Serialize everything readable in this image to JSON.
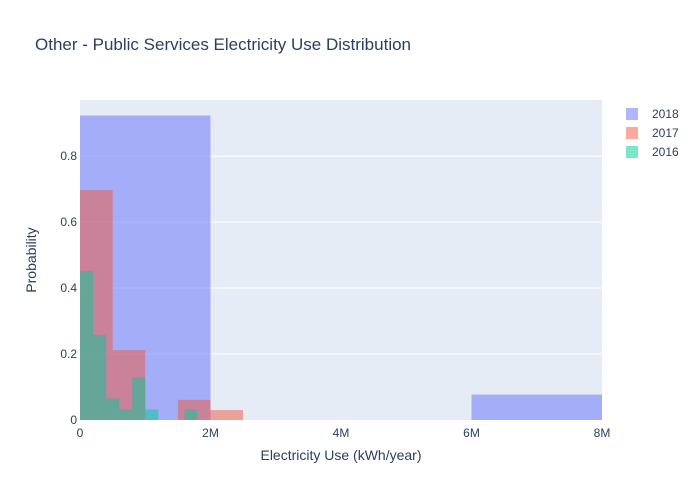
{
  "chart_data": {
    "type": "histogram",
    "title": "Other - Public Services Electricity Use Distribution",
    "xlabel": "Electricity Use (kWh/year)",
    "ylabel": "Probability",
    "xlim": [
      0,
      8000000
    ],
    "ylim": [
      0,
      0.97
    ],
    "x_ticks": [
      {
        "value": 0,
        "label": "0"
      },
      {
        "value": 2000000,
        "label": "2M"
      },
      {
        "value": 4000000,
        "label": "4M"
      },
      {
        "value": 6000000,
        "label": "6M"
      },
      {
        "value": 8000000,
        "label": "8M"
      }
    ],
    "y_ticks": [
      {
        "value": 0,
        "label": "0"
      },
      {
        "value": 0.2,
        "label": "0.2"
      },
      {
        "value": 0.4,
        "label": "0.4"
      },
      {
        "value": 0.6,
        "label": "0.6"
      },
      {
        "value": 0.8,
        "label": "0.8"
      }
    ],
    "grid": true,
    "legend_position": "top-right",
    "series": [
      {
        "name": "2018",
        "color": "#636efa",
        "bins": [
          {
            "x0": 0,
            "x1": 2000000,
            "y": 0.923
          },
          {
            "x0": 6000000,
            "x1": 8000000,
            "y": 0.077
          }
        ]
      },
      {
        "name": "2017",
        "color": "#ef553b",
        "bins": [
          {
            "x0": 0,
            "x1": 500000,
            "y": 0.697
          },
          {
            "x0": 500000,
            "x1": 1000000,
            "y": 0.212
          },
          {
            "x0": 1500000,
            "x1": 2000000,
            "y": 0.061
          },
          {
            "x0": 2000000,
            "x1": 2500000,
            "y": 0.03
          }
        ]
      },
      {
        "name": "2016",
        "color": "#00cc96",
        "bins": [
          {
            "x0": 0,
            "x1": 200000,
            "y": 0.452
          },
          {
            "x0": 200000,
            "x1": 400000,
            "y": 0.258
          },
          {
            "x0": 400000,
            "x1": 600000,
            "y": 0.065
          },
          {
            "x0": 600000,
            "x1": 800000,
            "y": 0.032
          },
          {
            "x0": 800000,
            "x1": 1000000,
            "y": 0.129
          },
          {
            "x0": 1000000,
            "x1": 1200000,
            "y": 0.032
          },
          {
            "x0": 1600000,
            "x1": 1800000,
            "y": 0.032
          }
        ]
      }
    ]
  }
}
